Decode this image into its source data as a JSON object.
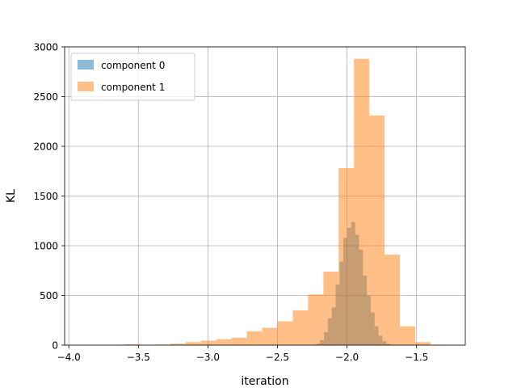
{
  "chart_data": {
    "type": "bar",
    "subtype": "histogram",
    "title": "",
    "xlabel": "iteration",
    "ylabel": "KL",
    "xlim": [
      -4.03,
      -1.15
    ],
    "ylim": [
      0,
      3000
    ],
    "xticks": [
      -4.0,
      -3.5,
      -3.0,
      -2.5,
      -2.0,
      -1.5
    ],
    "xtick_labels": [
      "−4.0",
      "−3.5",
      "−3.0",
      "−2.5",
      "−2.0",
      "−1.5"
    ],
    "yticks": [
      0,
      500,
      1000,
      1500,
      2000,
      2500,
      3000
    ],
    "ytick_labels": [
      "0",
      "500",
      "1000",
      "1500",
      "2000",
      "2500",
      "3000"
    ],
    "grid": true,
    "legend_position": "top-left",
    "series": [
      {
        "name": "component 0",
        "color": "#1f77b4",
        "alpha": 0.5,
        "bins": [
          [
            -2.25,
            -2.222,
            5
          ],
          [
            -2.222,
            -2.194,
            15
          ],
          [
            -2.194,
            -2.166,
            50
          ],
          [
            -2.166,
            -2.138,
            130
          ],
          [
            -2.138,
            -2.11,
            270
          ],
          [
            -2.11,
            -2.082,
            380
          ],
          [
            -2.082,
            -2.054,
            610
          ],
          [
            -2.054,
            -2.026,
            840
          ],
          [
            -2.026,
            -1.998,
            1080
          ],
          [
            -1.998,
            -1.97,
            1180
          ],
          [
            -1.97,
            -1.942,
            1240
          ],
          [
            -1.942,
            -1.914,
            1110
          ],
          [
            -1.914,
            -1.886,
            960
          ],
          [
            -1.886,
            -1.858,
            700
          ],
          [
            -1.858,
            -1.83,
            500
          ],
          [
            -1.83,
            -1.802,
            330
          ],
          [
            -1.802,
            -1.774,
            190
          ],
          [
            -1.774,
            -1.746,
            95
          ],
          [
            -1.746,
            -1.718,
            40
          ],
          [
            -1.718,
            -1.69,
            15
          ],
          [
            -1.69,
            -1.662,
            5
          ]
        ]
      },
      {
        "name": "component 1",
        "color": "#ff7f0e",
        "alpha": 0.5,
        "bins": [
          [
            -3.6,
            -3.49,
            8
          ],
          [
            -3.49,
            -3.38,
            3
          ],
          [
            -3.38,
            -3.27,
            6
          ],
          [
            -3.27,
            -3.16,
            15
          ],
          [
            -3.16,
            -3.05,
            30
          ],
          [
            -3.05,
            -2.94,
            45
          ],
          [
            -2.94,
            -2.83,
            60
          ],
          [
            -2.83,
            -2.72,
            75
          ],
          [
            -2.72,
            -2.61,
            140
          ],
          [
            -2.61,
            -2.5,
            175
          ],
          [
            -2.5,
            -2.39,
            240
          ],
          [
            -2.39,
            -2.28,
            350
          ],
          [
            -2.28,
            -2.17,
            510
          ],
          [
            -2.17,
            -2.06,
            740
          ],
          [
            -2.06,
            -1.95,
            1780
          ],
          [
            -1.95,
            -1.84,
            2880
          ],
          [
            -1.84,
            -1.73,
            2310
          ],
          [
            -1.73,
            -1.62,
            910
          ],
          [
            -1.62,
            -1.51,
            190
          ],
          [
            -1.51,
            -1.4,
            30
          ],
          [
            -1.4,
            -1.29,
            5
          ]
        ]
      }
    ]
  }
}
